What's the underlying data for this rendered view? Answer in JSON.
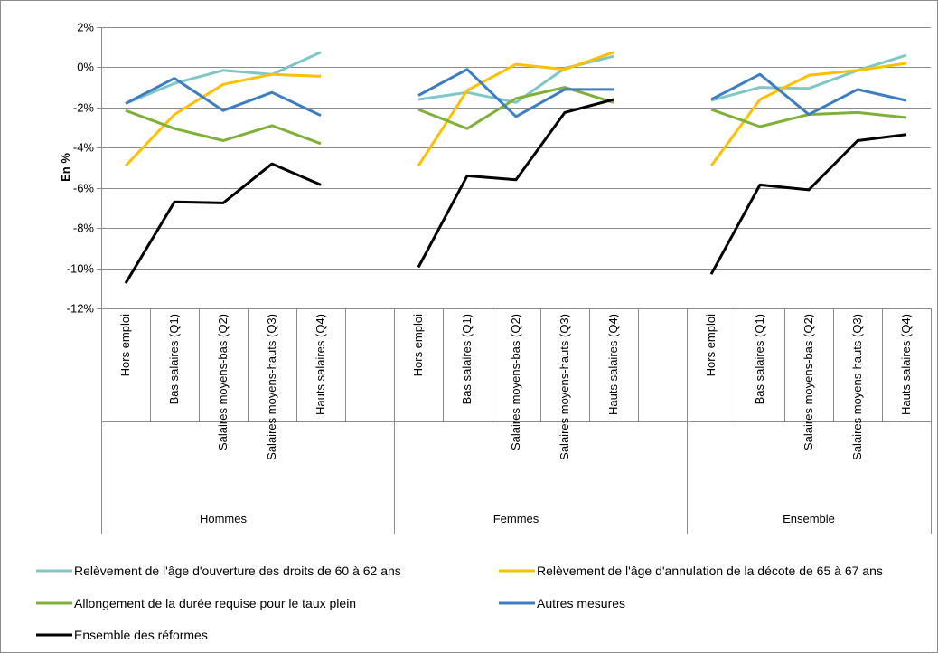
{
  "chart_data": {
    "type": "line",
    "title": "",
    "ylabel": "En %",
    "xlabel": "",
    "ylim": [
      -12,
      2
    ],
    "y_ticks": [
      "2%",
      "0%",
      "-2%",
      "-4%",
      "-6%",
      "-8%",
      "-10%",
      "-12%"
    ],
    "grid": true,
    "legend_position": "bottom",
    "groups": [
      {
        "name": "Hommes",
        "categories": [
          "Hors emploi",
          "Bas salaires (Q1)",
          "Salaires moyens-bas (Q2)",
          "Salaires moyens-hauts (Q3)",
          "Hauts salaires (Q4)"
        ]
      },
      {
        "name": "Femmes",
        "categories": [
          "Hors emploi",
          "Bas salaires (Q1)",
          "Salaires moyens-bas (Q2)",
          "Salaires moyens-hauts (Q3)",
          "Hauts salaires (Q4)"
        ]
      },
      {
        "name": "Ensemble",
        "categories": [
          "Hors emploi",
          "Bas salaires (Q1)",
          "Salaires moyens-bas (Q2)",
          "Salaires moyens-hauts (Q3)",
          "Hauts salaires (Q4)"
        ]
      }
    ],
    "series": [
      {
        "name": "Relèvement de l'âge d'ouverture des droits de 60 à 62 ans",
        "color": "#7fc7c7",
        "values": [
          [
            -1.8,
            -0.8,
            -0.15,
            -0.35,
            0.75
          ],
          [
            -1.6,
            -1.25,
            -1.75,
            -0.05,
            0.55
          ],
          [
            -1.65,
            -1.0,
            -1.05,
            -0.15,
            0.6
          ]
        ]
      },
      {
        "name": "Relèvement de l'âge d'annulation de la décote de 65 à 67 ans",
        "color": "#ffc000",
        "values": [
          [
            -4.9,
            -2.35,
            -0.85,
            -0.35,
            -0.45
          ],
          [
            -4.9,
            -1.15,
            0.15,
            -0.1,
            0.75
          ],
          [
            -4.9,
            -1.6,
            -0.4,
            -0.15,
            0.2
          ]
        ]
      },
      {
        "name": "Allongement de la durée requise pour le taux plein",
        "color": "#7fb13a",
        "values": [
          [
            -2.15,
            -3.05,
            -3.65,
            -2.9,
            -3.8
          ],
          [
            -2.1,
            -3.05,
            -1.55,
            -1.0,
            -1.75
          ],
          [
            -2.1,
            -2.95,
            -2.35,
            -2.25,
            -2.5
          ]
        ]
      },
      {
        "name": "Autres mesures",
        "color": "#3d7ec2",
        "values": [
          [
            -1.8,
            -0.55,
            -2.15,
            -1.25,
            -2.4
          ],
          [
            -1.4,
            -0.1,
            -2.45,
            -1.1,
            -1.1
          ],
          [
            -1.6,
            -0.35,
            -2.35,
            -1.1,
            -1.65
          ]
        ]
      },
      {
        "name": "Ensemble des réformes",
        "color": "#000000",
        "values": [
          [
            -10.75,
            -6.7,
            -6.75,
            -4.8,
            -5.85
          ],
          [
            -9.95,
            -5.4,
            -5.6,
            -2.25,
            -1.6
          ],
          [
            -10.3,
            -5.85,
            -6.1,
            -3.65,
            -3.35
          ]
        ]
      }
    ]
  }
}
